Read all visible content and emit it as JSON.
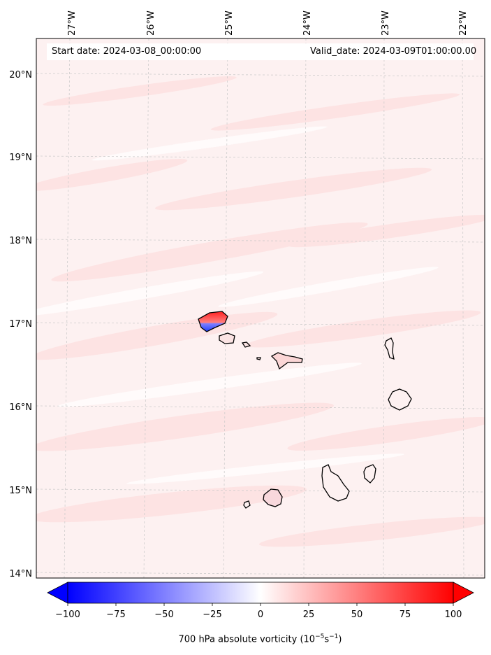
{
  "map": {
    "start_date_text": "Start date: 2024-03-08_00:00:00",
    "valid_date_text": "Valid_date: 2024-03-09T01:00:00.00",
    "lon_labels": [
      "27°W",
      "26°W",
      "25°W",
      "24°W",
      "23°W",
      "22°W"
    ],
    "lat_labels": [
      "20°N",
      "19°N",
      "18°N",
      "17°N",
      "16°N",
      "15°N",
      "14°N"
    ]
  },
  "colorbar": {
    "ticks": [
      "−100",
      "−75",
      "−50",
      "−25",
      "0",
      "25",
      "50",
      "75",
      "100"
    ],
    "label_prefix": "700 hPa absolute vorticity (10",
    "label_exp1": "−5",
    "label_mid": "s",
    "label_exp2": "−1",
    "label_suffix": ")",
    "range": [
      -100,
      100
    ],
    "colors": {
      "min": "#0000ff",
      "mid": "#ffffff",
      "max": "#ff0000"
    }
  }
}
